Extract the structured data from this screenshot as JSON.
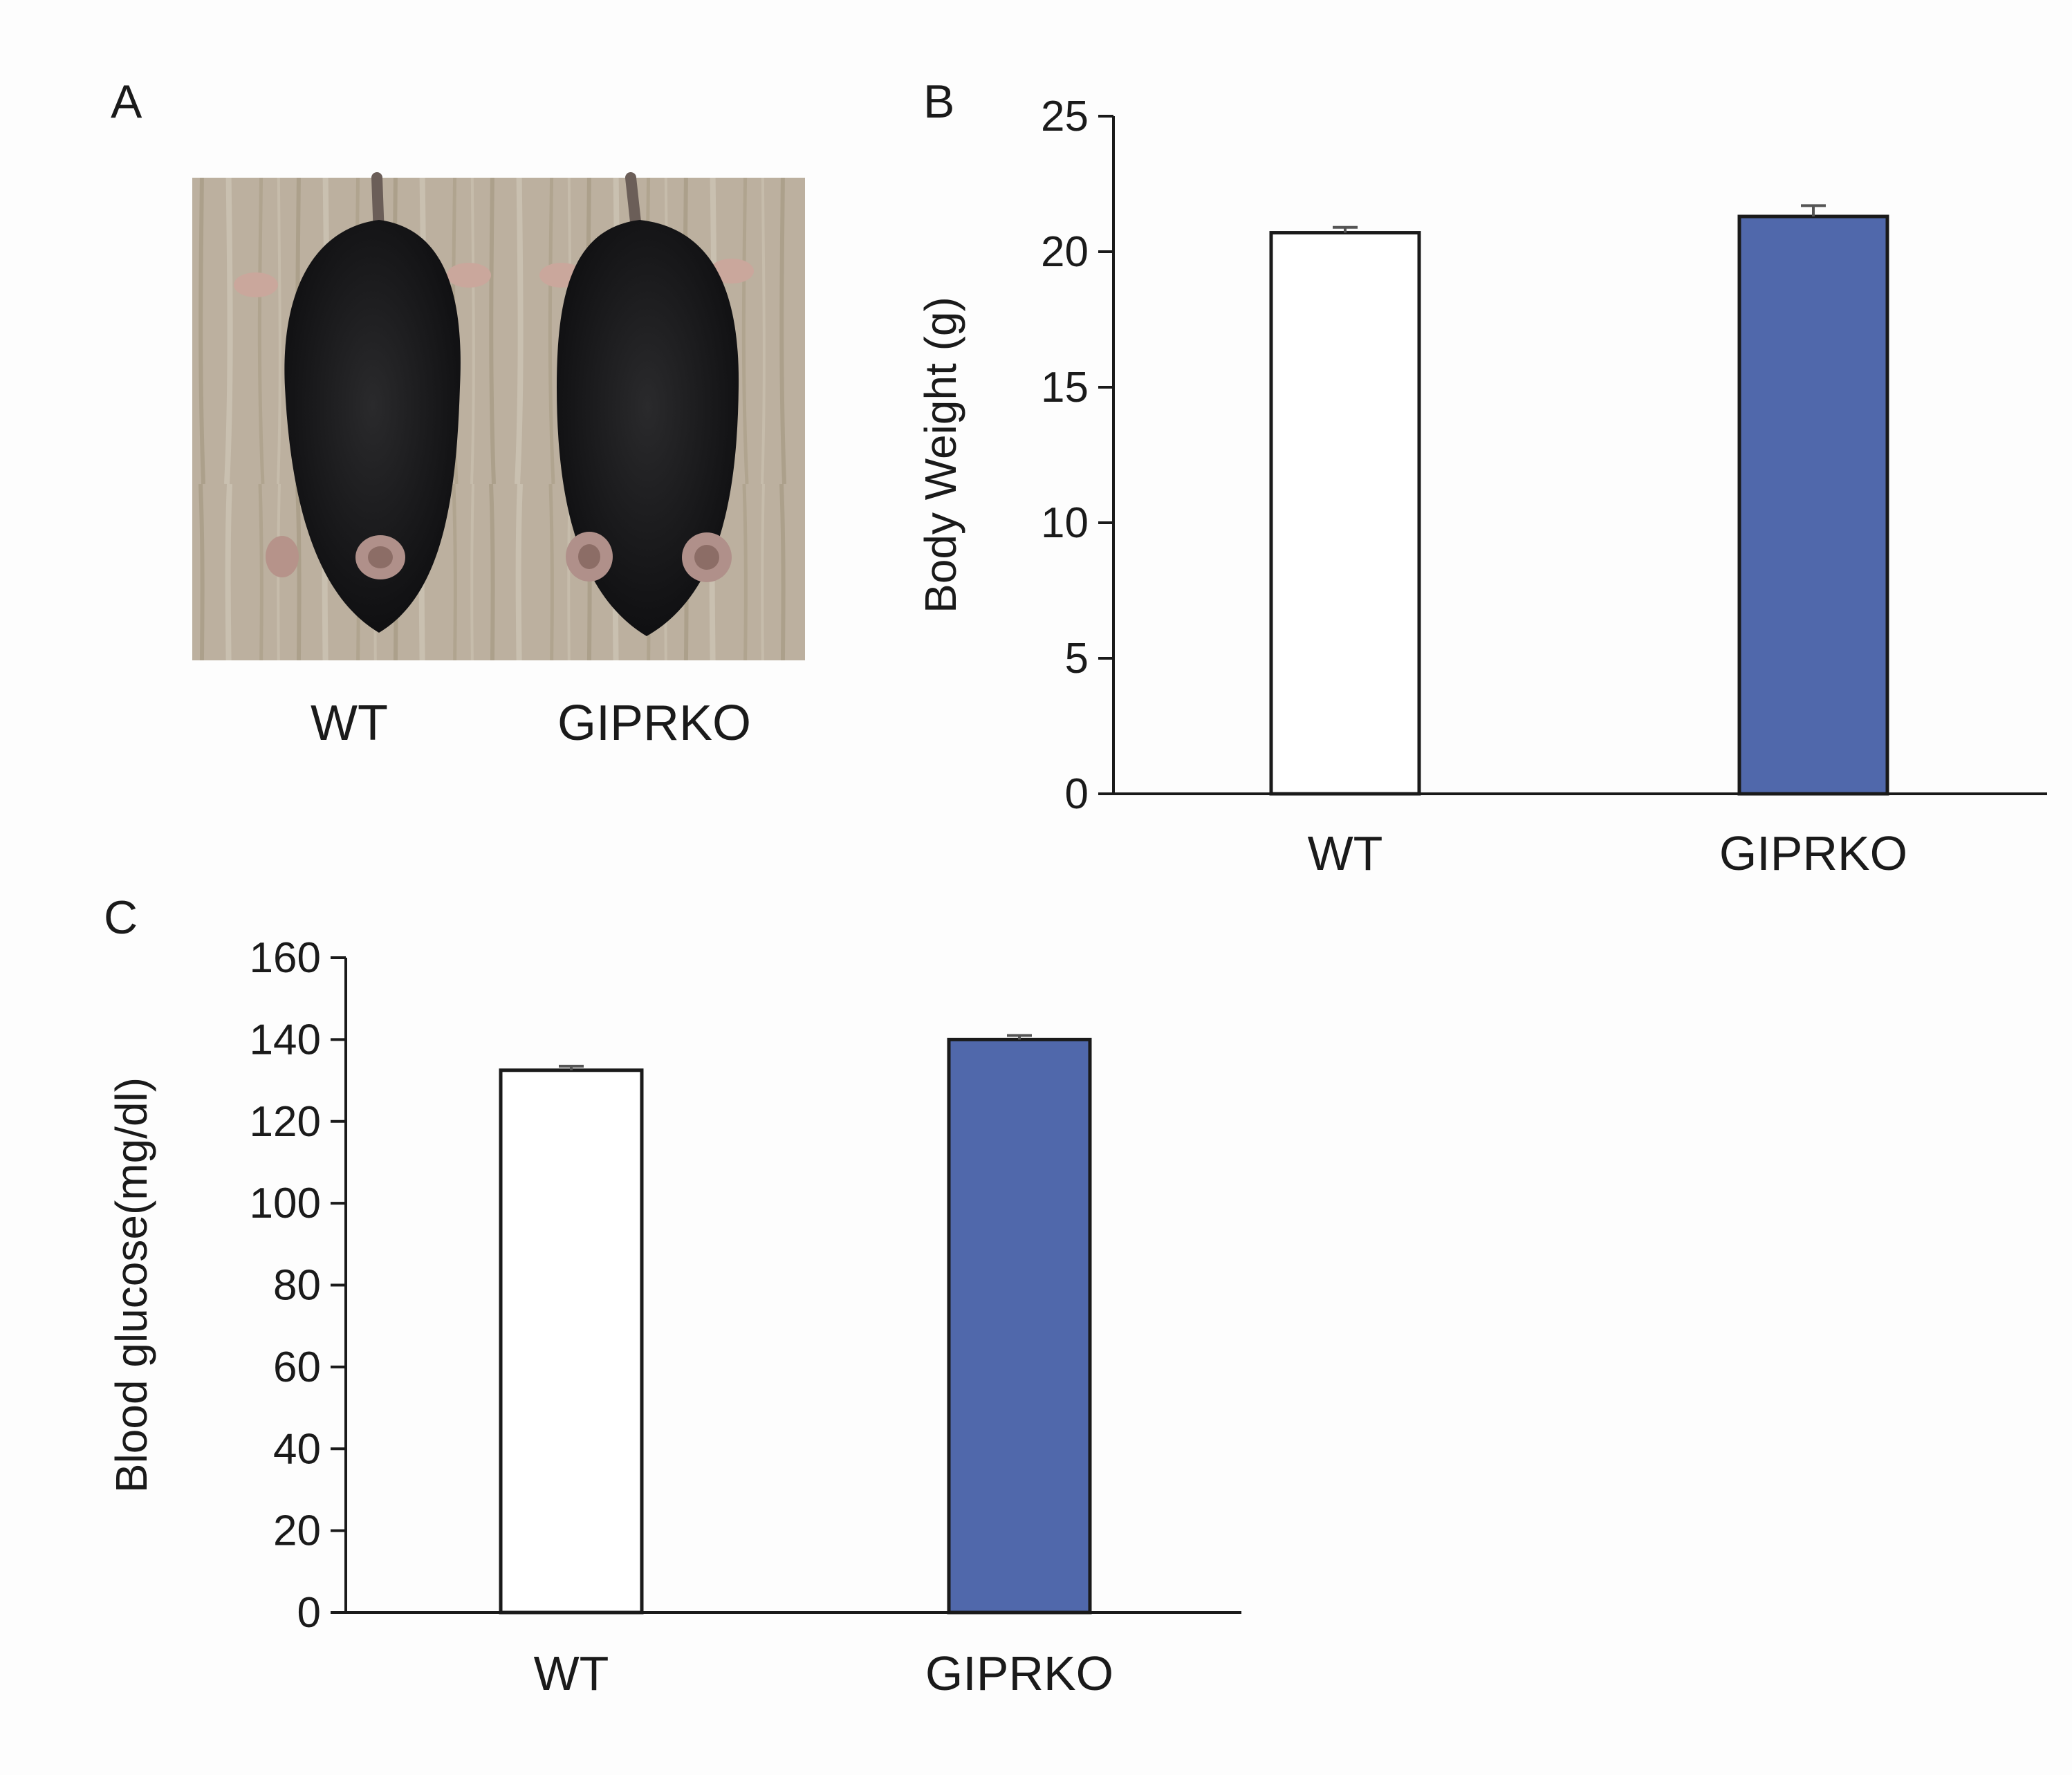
{
  "panel_a": {
    "letter": "A",
    "captions": [
      "WT",
      "GIPRKO"
    ]
  },
  "chart_data": [
    {
      "panel": "B",
      "type": "bar",
      "categories": [
        "WT",
        "GIPRKO"
      ],
      "values": [
        20.7,
        21.3
      ],
      "errors": [
        0.2,
        0.4
      ],
      "ylabel": "Body Weight (g)",
      "ylim": [
        0,
        25
      ],
      "yticks": [
        "0",
        "5",
        "10",
        "15",
        "20",
        "25"
      ],
      "bar_colors": [
        "#ffffff",
        "#5068ab"
      ],
      "grid": false
    },
    {
      "panel": "C",
      "type": "bar",
      "categories": [
        "WT",
        "GIPRKO"
      ],
      "values": [
        132.5,
        140
      ],
      "errors": [
        1,
        1
      ],
      "ylabel": "Blood glucose(mg/dl)",
      "ylim": [
        0,
        160
      ],
      "yticks": [
        "0",
        "20",
        "40",
        "60",
        "80",
        "100",
        "120",
        "140",
        "160"
      ],
      "bar_colors": [
        "#ffffff",
        "#5068ab"
      ],
      "grid": false
    }
  ]
}
